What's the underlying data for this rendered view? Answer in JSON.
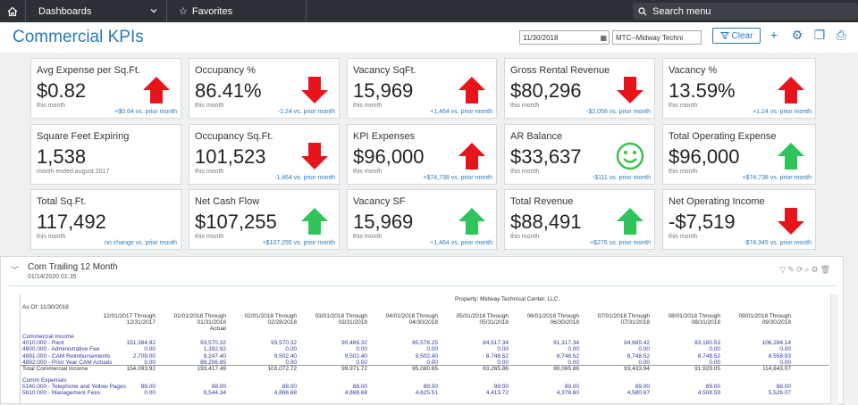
{
  "topbar": {
    "dashboards_label": "Dashboards",
    "favorites_label": "Favorites",
    "search_placeholder": "Search menu"
  },
  "header": {
    "title": "Commercial KPIs",
    "date_value": "11/30/2018",
    "property_value": "MTC--Midway Techni",
    "clear_label": "Clear"
  },
  "colors": {
    "accent": "#2a7ab8",
    "up_red": "#e8141c",
    "down_red": "#e8141c",
    "up_green": "#2ec45a",
    "smile_green": "#38c24c"
  },
  "kpis": [
    {
      "label": "Avg Expense per Sq.Ft.",
      "value": "$0.82",
      "sub": "this month",
      "cmp": "+$0.64 vs. prior month",
      "indicator": "arrow-up-red"
    },
    {
      "label": "Occupancy %",
      "value": "86.41%",
      "sub": "this month",
      "cmp": "-1.24 vs. prior month",
      "indicator": "arrow-down-red"
    },
    {
      "label": "Vacancy SqFt.",
      "value": "15,969",
      "sub": "this month",
      "cmp": "+1,464 vs. prior month",
      "indicator": "arrow-up-red"
    },
    {
      "label": "Gross Rental Revenue",
      "value": "$80,296",
      "sub": "this month",
      "cmp": "-$2,058 vs. prior month",
      "indicator": "arrow-down-red"
    },
    {
      "label": "Vacancy %",
      "value": "13.59%",
      "sub": "this month",
      "cmp": "+1.24 vs. prior month",
      "indicator": "arrow-up-red"
    },
    {
      "label": "Square Feet Expiring",
      "value": "1,538",
      "sub": "month ended august 2017",
      "cmp": "",
      "indicator": "none"
    },
    {
      "label": "Occupancy Sq.Ft.",
      "value": "101,523",
      "sub": "this month",
      "cmp": "-1,464 vs. prior month",
      "indicator": "arrow-down-red"
    },
    {
      "label": "KPI Expenses",
      "value": "$96,000",
      "sub": "this month",
      "cmp": "+$74,738 vs. prior month",
      "indicator": "arrow-up-red"
    },
    {
      "label": "AR Balance",
      "value": "$33,637",
      "sub": "this month",
      "cmp": "-$111 vs. prior month",
      "indicator": "smiley-green"
    },
    {
      "label": "Total Operating Expense",
      "value": "$96,000",
      "sub": "this month",
      "cmp": "+$74,738 vs. prior month",
      "indicator": "arrow-up-green"
    },
    {
      "label": "Total Sq.Ft.",
      "value": "117,492",
      "sub": "this month",
      "cmp": "no change vs. prior month",
      "indicator": "none"
    },
    {
      "label": "Net Cash Flow",
      "value": "$107,255",
      "sub": "this month",
      "cmp": "+$107,255 vs. prior month",
      "indicator": "arrow-up-green"
    },
    {
      "label": "Vacancy SF",
      "value": "15,969",
      "sub": "this month",
      "cmp": "+1,464 vs. prior month",
      "indicator": "arrow-up-green"
    },
    {
      "label": "Total Revenue",
      "value": "$88,491",
      "sub": "this month",
      "cmp": "+$276 vs. prior month",
      "indicator": "arrow-up-green"
    },
    {
      "label": "Net Operating Income",
      "value": "-$7,519",
      "sub": "this month",
      "cmp": "-$74,345 vs. prior month",
      "indicator": "arrow-down-red"
    }
  ],
  "report": {
    "title": "Com Trailing 12 Month",
    "date": "01/14/2020 01:35",
    "property": "Property: Midway Technical Center, LLC.",
    "as_of": "As Of: 11/30/2018",
    "columns": [
      [
        "12/01/2017 Through",
        "12/31/2017",
        ""
      ],
      [
        "01/01/2018 Through",
        "01/31/2018",
        "Actual"
      ],
      [
        "02/01/2018 Through",
        "02/28/2018",
        ""
      ],
      [
        "03/01/2018 Through",
        "03/31/2018",
        ""
      ],
      [
        "04/01/2018 Through",
        "04/30/2018",
        ""
      ],
      [
        "05/01/2018 Through",
        "05/31/2018",
        ""
      ],
      [
        "06/01/2018 Through",
        "06/30/2018",
        ""
      ],
      [
        "07/01/2018 Through",
        "07/31/2018",
        ""
      ],
      [
        "08/01/2018 Through",
        "08/31/2018",
        ""
      ],
      [
        "09/01/2018 Through",
        "09/30/2018",
        ""
      ]
    ],
    "sections": [
      {
        "label": "Commercial Income",
        "type": "header",
        "cells": []
      },
      {
        "label": "4010.000 - Rent",
        "type": "row",
        "cells": [
          "151,384.92",
          "93,570.32",
          "93,570.32",
          "90,469.32",
          "85,578.25",
          "84,517.34",
          "81,317.34",
          "84,685.42",
          "83,180.53",
          "106,284.14"
        ]
      },
      {
        "label": "4600.000 - Administrative Fee",
        "type": "row",
        "cells": [
          "0.00",
          "1,392.92",
          "0.00",
          "0.00",
          "0.00",
          "0.00",
          "0.00",
          "0.00",
          "0.00",
          "0.00"
        ]
      },
      {
        "label": "4891.000 - CAM Reimbursements",
        "type": "row",
        "cells": [
          "2,709.00",
          "9,247.40",
          "9,502.40",
          "9,502.40",
          "9,502.40",
          "8,748.52",
          "8,748.52",
          "8,748.52",
          "8,748.52",
          "8,558.93"
        ]
      },
      {
        "label": "4892.000 - Prior Year CAM Actuals",
        "type": "row",
        "cells": [
          "0.00",
          "89,206.85",
          "0.00",
          "0.00",
          "0.00",
          "0.00",
          "0.00",
          "0.00",
          "0.00",
          "0.00"
        ]
      },
      {
        "label": "Total Commercial Income",
        "type": "total",
        "cells": [
          "154,093.92",
          "193,417.49",
          "103,072.72",
          "99,971.72",
          "95,080.65",
          "93,265.86",
          "90,065.86",
          "93,433.94",
          "91,929.05",
          "114,843.07"
        ]
      },
      {
        "label": "Comm Expenses",
        "type": "header",
        "cells": []
      },
      {
        "label": "5140.000 - Telephone and Yellow Pages",
        "type": "row",
        "cells": [
          "88.00",
          "88.00",
          "88.00",
          "88.00",
          "89.00",
          "89.00",
          "89.00",
          "89.00",
          "89.00",
          "88.00"
        ]
      },
      {
        "label": "5610.000 - Management Fees",
        "type": "row",
        "cells": [
          "0.00",
          "9,544.34",
          "4,868.68",
          "4,868.68",
          "4,625.51",
          "4,413.72",
          "4,378.80",
          "4,580.67",
          "4,508.59",
          "5,526.07"
        ]
      }
    ]
  }
}
